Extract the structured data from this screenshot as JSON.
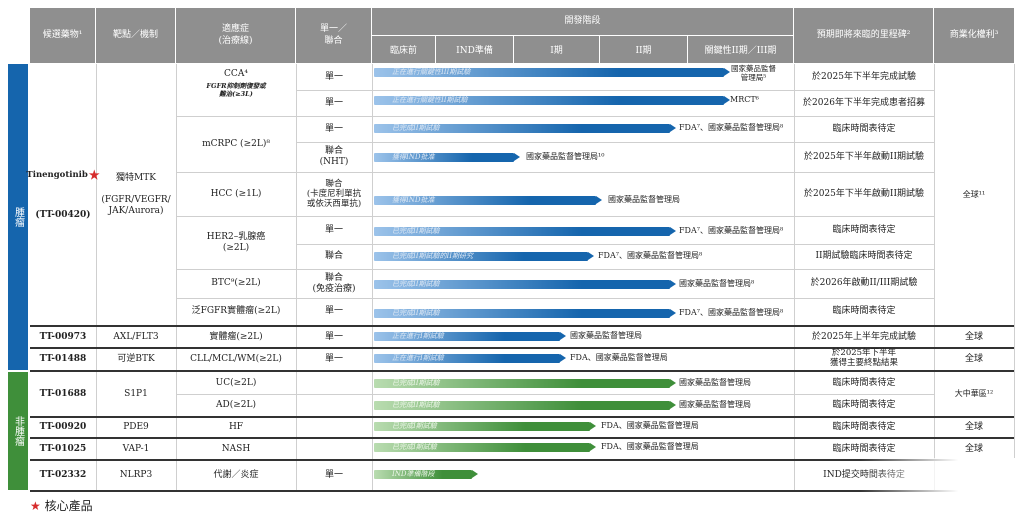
{
  "colors": {
    "oncology": "#1565ad",
    "nononcology": "#3f8f3a",
    "header": "#8f8f8f",
    "star": "#d62b2b"
  },
  "headers": {
    "candidate": "候選藥物¹",
    "target": "靶點／機制",
    "indication": "適應症\n(治療線)",
    "mono_combo": "單一／\n聯合",
    "dev_stage": "開發階段",
    "milestone": "預期即將來臨的里程碑²",
    "rights": "商業化權利³",
    "stages": [
      "臨床前",
      "IND準備",
      "I期",
      "II期",
      "關鍵性II期／III期"
    ]
  },
  "side": {
    "oncology": "腫瘤",
    "nononcology": "非腫瘤"
  },
  "rows": [
    {
      "candidate": "Tinengotinib",
      "star": true,
      "candidate_code": "(TT-00420)",
      "target": "獨特MTK\n\n(FGFR/VEGFR/\nJAK/Aurora)",
      "indications": [
        {
          "name": "CCA⁴",
          "sub": "FGFR抑制劑復發或\n難治(≥3L)",
          "lines": [
            {
              "mode": "單一",
              "bar_text": "正在進行關鍵性III期試驗",
              "label": "國家藥品監督\n管理局⁵",
              "milestone": "於2025年下半年完成試驗"
            },
            {
              "mode": "單一",
              "bar_text": "正在進行關鍵性II期試驗",
              "label": "MRCT⁶",
              "milestone": "於2026年下半年完成患者招募"
            }
          ]
        },
        {
          "name": "mCRPC (≥2L)⁸",
          "lines": [
            {
              "mode": "單一",
              "bar_text": "已完成II期試驗",
              "label": "FDA⁷、國家藥品監督管理局⁸",
              "milestone": "臨床時間表待定"
            },
            {
              "mode": "聯合\n(NHT)",
              "bar_text": "獲得IND批准",
              "label": "國家藥品監督管理局¹⁰",
              "milestone": "於2025年下半年啟動II期試驗"
            }
          ]
        },
        {
          "name": "HCC (≥1L)",
          "lines": [
            {
              "mode": "聯合\n(卡度尼利單抗\n或依沃西單抗)",
              "bar_text": "獲得IND批准",
              "label": "國家藥品監督管理局",
              "milestone": "於2025年下半年啟動II期試驗"
            }
          ]
        },
        {
          "name": "HER2–乳腺癌\n(≥2L)",
          "lines": [
            {
              "mode": "單一",
              "bar_text": "已完成II期試驗",
              "label": "FDA⁷、國家藥品監督管理局⁸",
              "milestone": "臨床時間表待定"
            },
            {
              "mode": "聯合",
              "bar_text": "已完成II期試驗的II期研究",
              "label": "FDA⁷、國家藥品監督管理局⁸",
              "milestone": "II期試驗臨床時間表待定"
            }
          ]
        },
        {
          "name": "BTC⁹(≥2L)",
          "lines": [
            {
              "mode": "聯合\n(免疫治療)",
              "bar_text": "已完成II期試驗",
              "label": "國家藥品監督管理局⁸",
              "milestone": "於2026年啟動II/III期試驗"
            }
          ]
        },
        {
          "name": "泛FGFR實體瘤(≥2L)",
          "lines": [
            {
              "mode": "單一",
              "bar_text": "已完成II期試驗",
              "label": "FDA⁷、國家藥品監督管理局⁸",
              "milestone": "臨床時間表待定"
            }
          ]
        }
      ],
      "rights": "全球¹¹"
    },
    {
      "candidate": "TT-00973",
      "target": "AXL/FLT3",
      "indication": "實體瘤(≥2L)",
      "mode": "單一",
      "bar_text": "正在進行I期試驗",
      "label": "國家藥品監督管理局",
      "milestone": "於2025年上半年完成試驗",
      "rights": "全球"
    },
    {
      "candidate": "TT-01488",
      "target": "可逆BTK",
      "indication": "CLL/MCL/WM(≥2L)",
      "mode": "單一",
      "bar_text": "正在進行I期試驗",
      "label": "FDA、國家藥品監督管理局",
      "milestone": "於2025年下半年\n獲得主要終點結果",
      "rights": "全球"
    },
    {
      "candidate": "TT-01688",
      "target": "S1P1",
      "indications": [
        {
          "name": "UC(≥2L)",
          "bar_text": "已完成II期試驗",
          "label": "國家藥品監督管理局",
          "milestone": "臨床時間表待定"
        },
        {
          "name": "AD(≥2L)",
          "bar_text": "已完成II期試驗",
          "label": "國家藥品監督管理局",
          "milestone": "臨床時間表待定"
        }
      ],
      "rights": "大中華區¹²"
    },
    {
      "candidate": "TT-00920",
      "target": "PDE9",
      "indication": "HF",
      "bar_text": "已完成I期試驗",
      "label": "FDA、國家藥品監督管理局",
      "milestone": "臨床時間表待定",
      "rights": "全球"
    },
    {
      "candidate": "TT-01025",
      "target": "VAP-1",
      "indication": "NASH",
      "bar_text": "已完成I期試驗",
      "label": "FDA、國家藥品監督管理局",
      "milestone": "臨床時間表待定",
      "rights": "全球"
    },
    {
      "candidate": "TT-02332",
      "target": "NLRP3",
      "indication": "代謝／炎症",
      "mode": "單一",
      "bar_text": "IND準備階段",
      "label": "",
      "milestone": "IND提交時間表待定",
      "rights": "全球"
    }
  ],
  "legend": "核心產品"
}
